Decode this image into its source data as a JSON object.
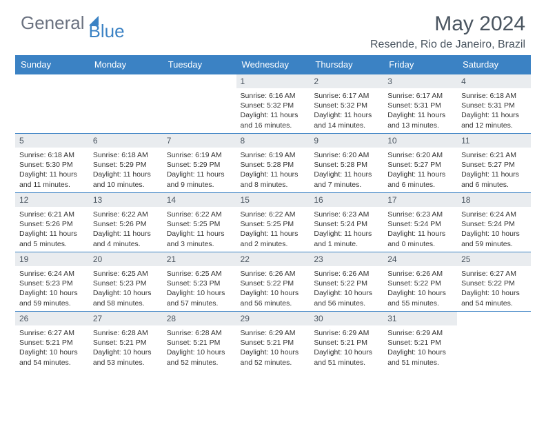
{
  "logo": {
    "text1": "General",
    "text2": "Blue"
  },
  "title": "May 2024",
  "location": "Resende, Rio de Janeiro, Brazil",
  "colors": {
    "header_bg": "#3b82c4",
    "header_text": "#ffffff",
    "daynum_bg": "#e9ecef",
    "border": "#3b82c4",
    "text": "#333333",
    "title_text": "#4a5560"
  },
  "weekdays": [
    "Sunday",
    "Monday",
    "Tuesday",
    "Wednesday",
    "Thursday",
    "Friday",
    "Saturday"
  ],
  "weeks": [
    [
      null,
      null,
      null,
      {
        "n": "1",
        "sr": "6:16 AM",
        "ss": "5:32 PM",
        "dl": "11 hours and 16 minutes."
      },
      {
        "n": "2",
        "sr": "6:17 AM",
        "ss": "5:32 PM",
        "dl": "11 hours and 14 minutes."
      },
      {
        "n": "3",
        "sr": "6:17 AM",
        "ss": "5:31 PM",
        "dl": "11 hours and 13 minutes."
      },
      {
        "n": "4",
        "sr": "6:18 AM",
        "ss": "5:31 PM",
        "dl": "11 hours and 12 minutes."
      }
    ],
    [
      {
        "n": "5",
        "sr": "6:18 AM",
        "ss": "5:30 PM",
        "dl": "11 hours and 11 minutes."
      },
      {
        "n": "6",
        "sr": "6:18 AM",
        "ss": "5:29 PM",
        "dl": "11 hours and 10 minutes."
      },
      {
        "n": "7",
        "sr": "6:19 AM",
        "ss": "5:29 PM",
        "dl": "11 hours and 9 minutes."
      },
      {
        "n": "8",
        "sr": "6:19 AM",
        "ss": "5:28 PM",
        "dl": "11 hours and 8 minutes."
      },
      {
        "n": "9",
        "sr": "6:20 AM",
        "ss": "5:28 PM",
        "dl": "11 hours and 7 minutes."
      },
      {
        "n": "10",
        "sr": "6:20 AM",
        "ss": "5:27 PM",
        "dl": "11 hours and 6 minutes."
      },
      {
        "n": "11",
        "sr": "6:21 AM",
        "ss": "5:27 PM",
        "dl": "11 hours and 6 minutes."
      }
    ],
    [
      {
        "n": "12",
        "sr": "6:21 AM",
        "ss": "5:26 PM",
        "dl": "11 hours and 5 minutes."
      },
      {
        "n": "13",
        "sr": "6:22 AM",
        "ss": "5:26 PM",
        "dl": "11 hours and 4 minutes."
      },
      {
        "n": "14",
        "sr": "6:22 AM",
        "ss": "5:25 PM",
        "dl": "11 hours and 3 minutes."
      },
      {
        "n": "15",
        "sr": "6:22 AM",
        "ss": "5:25 PM",
        "dl": "11 hours and 2 minutes."
      },
      {
        "n": "16",
        "sr": "6:23 AM",
        "ss": "5:24 PM",
        "dl": "11 hours and 1 minute."
      },
      {
        "n": "17",
        "sr": "6:23 AM",
        "ss": "5:24 PM",
        "dl": "11 hours and 0 minutes."
      },
      {
        "n": "18",
        "sr": "6:24 AM",
        "ss": "5:24 PM",
        "dl": "10 hours and 59 minutes."
      }
    ],
    [
      {
        "n": "19",
        "sr": "6:24 AM",
        "ss": "5:23 PM",
        "dl": "10 hours and 59 minutes."
      },
      {
        "n": "20",
        "sr": "6:25 AM",
        "ss": "5:23 PM",
        "dl": "10 hours and 58 minutes."
      },
      {
        "n": "21",
        "sr": "6:25 AM",
        "ss": "5:23 PM",
        "dl": "10 hours and 57 minutes."
      },
      {
        "n": "22",
        "sr": "6:26 AM",
        "ss": "5:22 PM",
        "dl": "10 hours and 56 minutes."
      },
      {
        "n": "23",
        "sr": "6:26 AM",
        "ss": "5:22 PM",
        "dl": "10 hours and 56 minutes."
      },
      {
        "n": "24",
        "sr": "6:26 AM",
        "ss": "5:22 PM",
        "dl": "10 hours and 55 minutes."
      },
      {
        "n": "25",
        "sr": "6:27 AM",
        "ss": "5:22 PM",
        "dl": "10 hours and 54 minutes."
      }
    ],
    [
      {
        "n": "26",
        "sr": "6:27 AM",
        "ss": "5:21 PM",
        "dl": "10 hours and 54 minutes."
      },
      {
        "n": "27",
        "sr": "6:28 AM",
        "ss": "5:21 PM",
        "dl": "10 hours and 53 minutes."
      },
      {
        "n": "28",
        "sr": "6:28 AM",
        "ss": "5:21 PM",
        "dl": "10 hours and 52 minutes."
      },
      {
        "n": "29",
        "sr": "6:29 AM",
        "ss": "5:21 PM",
        "dl": "10 hours and 52 minutes."
      },
      {
        "n": "30",
        "sr": "6:29 AM",
        "ss": "5:21 PM",
        "dl": "10 hours and 51 minutes."
      },
      {
        "n": "31",
        "sr": "6:29 AM",
        "ss": "5:21 PM",
        "dl": "10 hours and 51 minutes."
      },
      null
    ]
  ],
  "labels": {
    "sunrise": "Sunrise:",
    "sunset": "Sunset:",
    "daylight": "Daylight:"
  }
}
